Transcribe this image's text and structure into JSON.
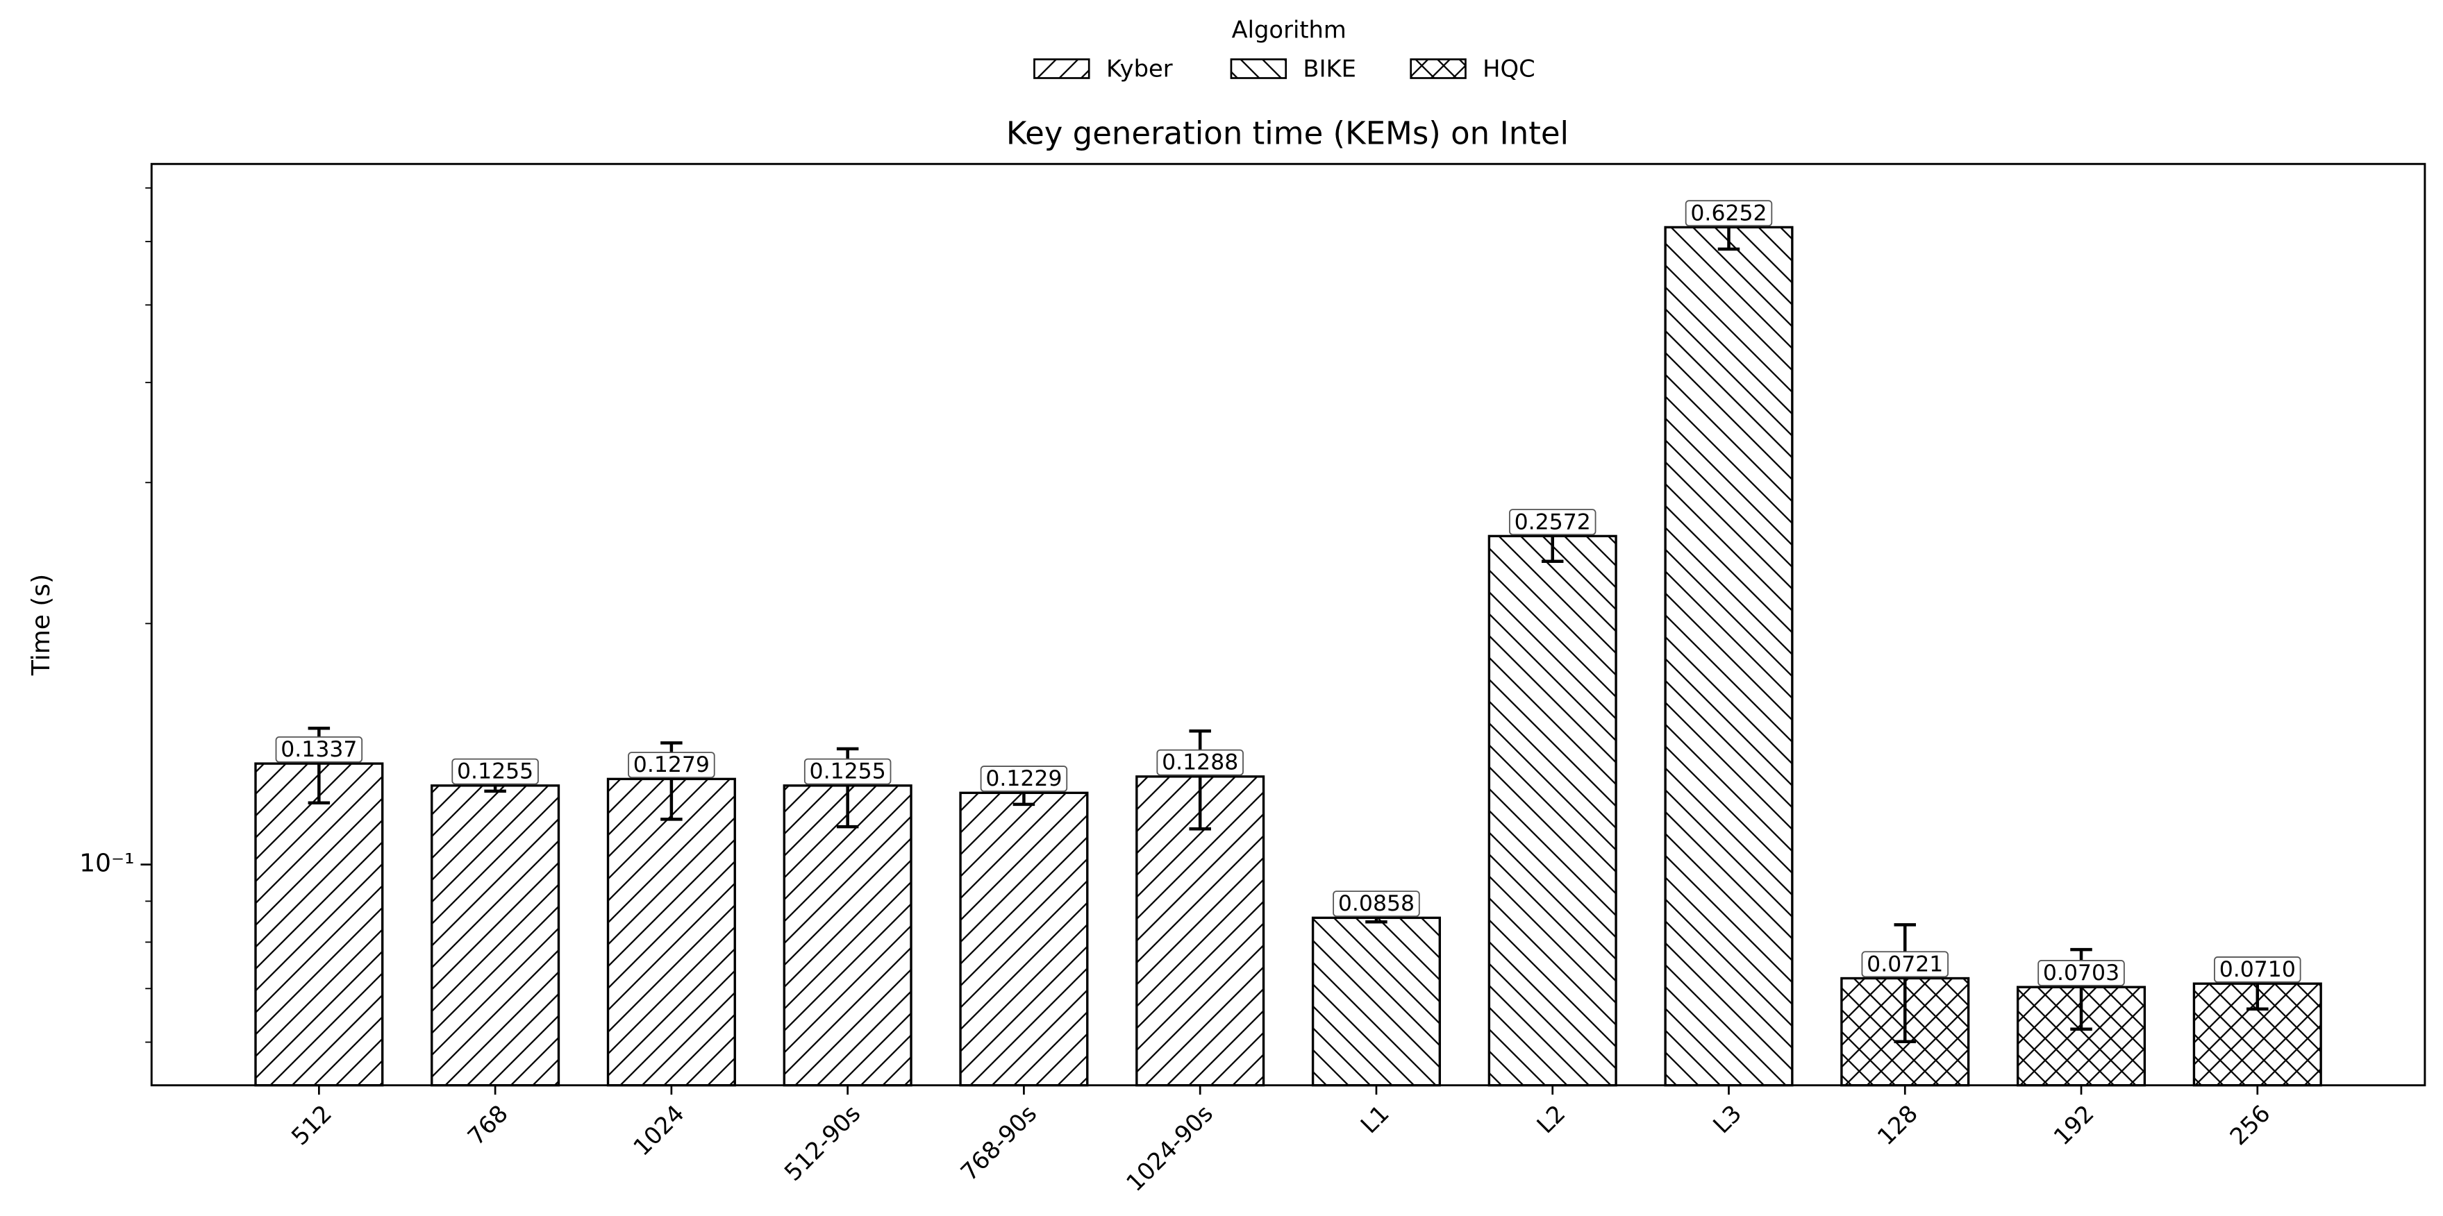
{
  "chart_data": {
    "type": "bar",
    "title": "Key generation time (KEMs) on Intel",
    "ylabel": "Time (s)",
    "legend_title": "Algorithm",
    "legend": "upper center",
    "log_y": true,
    "categories": [
      "512",
      "768",
      "1024",
      "512-90s",
      "768-90s",
      "1024-90s",
      "L1",
      "L2",
      "L3",
      "128",
      "192",
      "256"
    ],
    "series": [
      {
        "name": "Kyber",
        "hatch": "//",
        "color": "#ffffff",
        "values": [
          0.1337,
          0.1255,
          0.1279,
          0.1255,
          0.1229,
          0.1288,
          null,
          null,
          null,
          null,
          null,
          null
        ],
        "value_labels": [
          "0.1337",
          "0.1255",
          "0.1279",
          "0.1255",
          "0.1229",
          "0.1288",
          null,
          null,
          null,
          null,
          null,
          null
        ],
        "errors": [
          0.0143,
          0.002,
          0.014,
          0.014,
          0.004,
          0.018,
          null,
          null,
          null,
          null,
          null,
          null
        ]
      },
      {
        "name": "BIKE",
        "hatch": "\\\\",
        "color": "#ffffff",
        "values": [
          null,
          null,
          null,
          null,
          null,
          null,
          0.0858,
          0.2572,
          0.6252,
          null,
          null,
          null
        ],
        "value_labels": [
          null,
          null,
          null,
          null,
          null,
          null,
          "0.0858",
          "0.2572",
          "0.6252",
          null,
          null,
          null
        ],
        "errors": [
          null,
          null,
          null,
          null,
          null,
          null,
          0.001,
          0.018,
          0.038,
          null,
          null,
          null
        ]
      },
      {
        "name": "HQC",
        "hatch": "xx",
        "color": "#ffffff",
        "values": [
          null,
          null,
          null,
          null,
          null,
          null,
          null,
          null,
          null,
          0.0721,
          0.0703,
          0.071
        ],
        "value_labels": [
          null,
          null,
          null,
          null,
          null,
          null,
          null,
          null,
          null,
          "0.0721",
          "0.0703",
          "0.0710"
        ],
        "errors": [
          null,
          null,
          null,
          null,
          null,
          null,
          null,
          null,
          null,
          0.012,
          0.008,
          0.005
        ]
      }
    ],
    "ylim": [
      0.053,
      0.75
    ],
    "yticks": [
      {
        "value": 0.1,
        "label": "10⁻¹"
      }
    ]
  }
}
